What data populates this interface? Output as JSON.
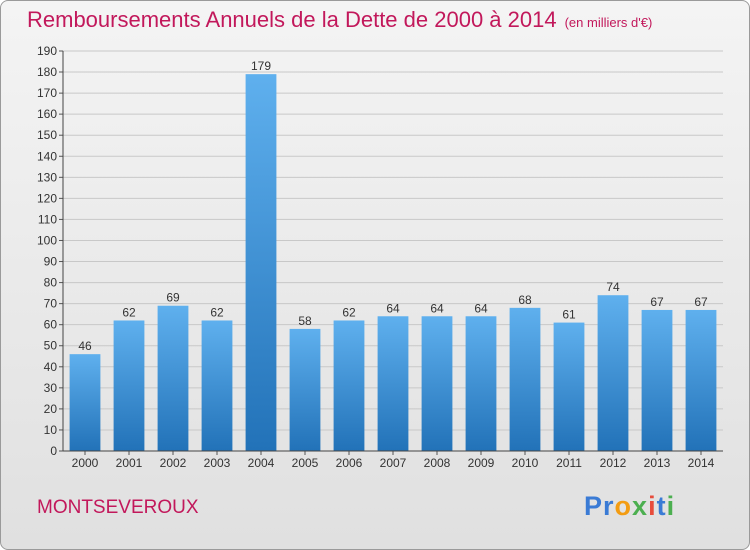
{
  "title": "Remboursements Annuels de la Dette de 2000 à 2014",
  "unit_label": "(en milliers d'€)",
  "city": "MONTSEVEROUX",
  "logo": {
    "letters": [
      "P",
      "r",
      "o",
      "x",
      "i",
      "t",
      "i"
    ],
    "colors": [
      "#3a7bd5",
      "#3a7bd5",
      "#f39c12",
      "#4caf50",
      "#e74c3c",
      "#3a7bd5",
      "#4caf50"
    ]
  },
  "chart_data": {
    "type": "bar",
    "categories": [
      "2000",
      "2001",
      "2002",
      "2003",
      "2004",
      "2005",
      "2006",
      "2007",
      "2008",
      "2009",
      "2010",
      "2011",
      "2012",
      "2013",
      "2014"
    ],
    "values": [
      46,
      62,
      69,
      62,
      179,
      58,
      62,
      64,
      64,
      64,
      68,
      61,
      74,
      67,
      67
    ],
    "ylim": [
      0,
      190
    ],
    "ytick_step": 10,
    "grid": true,
    "bar_color": "#3a8fd8"
  }
}
